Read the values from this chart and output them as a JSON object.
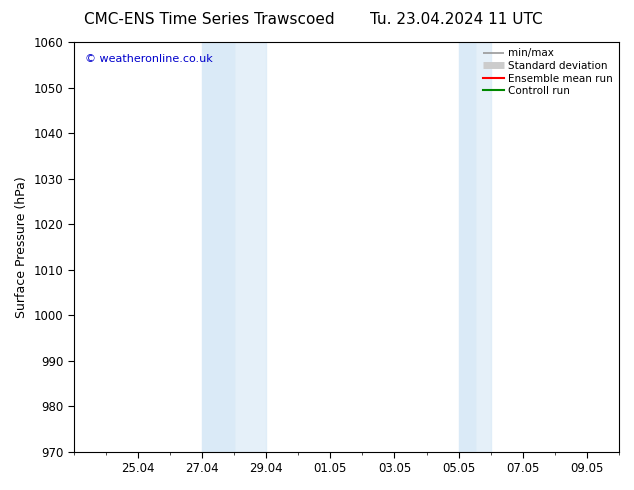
{
  "title_left": "CMC-ENS Time Series Trawscoed",
  "title_right": "Tu. 23.04.2024 11 UTC",
  "ylabel": "Surface Pressure (hPa)",
  "ylim": [
    970,
    1060
  ],
  "ytick_step": 10,
  "bg_color": "#ffffff",
  "plot_bg_color": "#ffffff",
  "watermark": "© weatheronline.co.uk",
  "watermark_color": "#0000cc",
  "legend_items": [
    {
      "label": "min/max",
      "color": "#999999",
      "lw": 1.2
    },
    {
      "label": "Standard deviation",
      "color": "#cccccc",
      "lw": 5
    },
    {
      "label": "Ensemble mean run",
      "color": "#ff0000",
      "lw": 1.5
    },
    {
      "label": "Controll run",
      "color": "#008800",
      "lw": 1.5
    }
  ],
  "band_color": "#daeaf7",
  "band1_xstart": 4.0,
  "band1_xend": 5.0,
  "band1b_xstart": 5.0,
  "band1b_xend": 6.0,
  "band2_xstart": 12.0,
  "band2_xend": 12.5,
  "band2b_xstart": 12.5,
  "band2b_xend": 13.0,
  "xtick_labels": [
    "25.04",
    "27.04",
    "29.04",
    "01.05",
    "03.05",
    "05.05",
    "07.05",
    "09.05"
  ],
  "xtick_positions": [
    2,
    4,
    6,
    8,
    10,
    12,
    14,
    16
  ],
  "xlim": [
    0,
    17
  ],
  "grid_color": "#e0e0e0",
  "tick_label_fontsize": 8.5,
  "axis_label_fontsize": 9,
  "title_fontsize": 11
}
